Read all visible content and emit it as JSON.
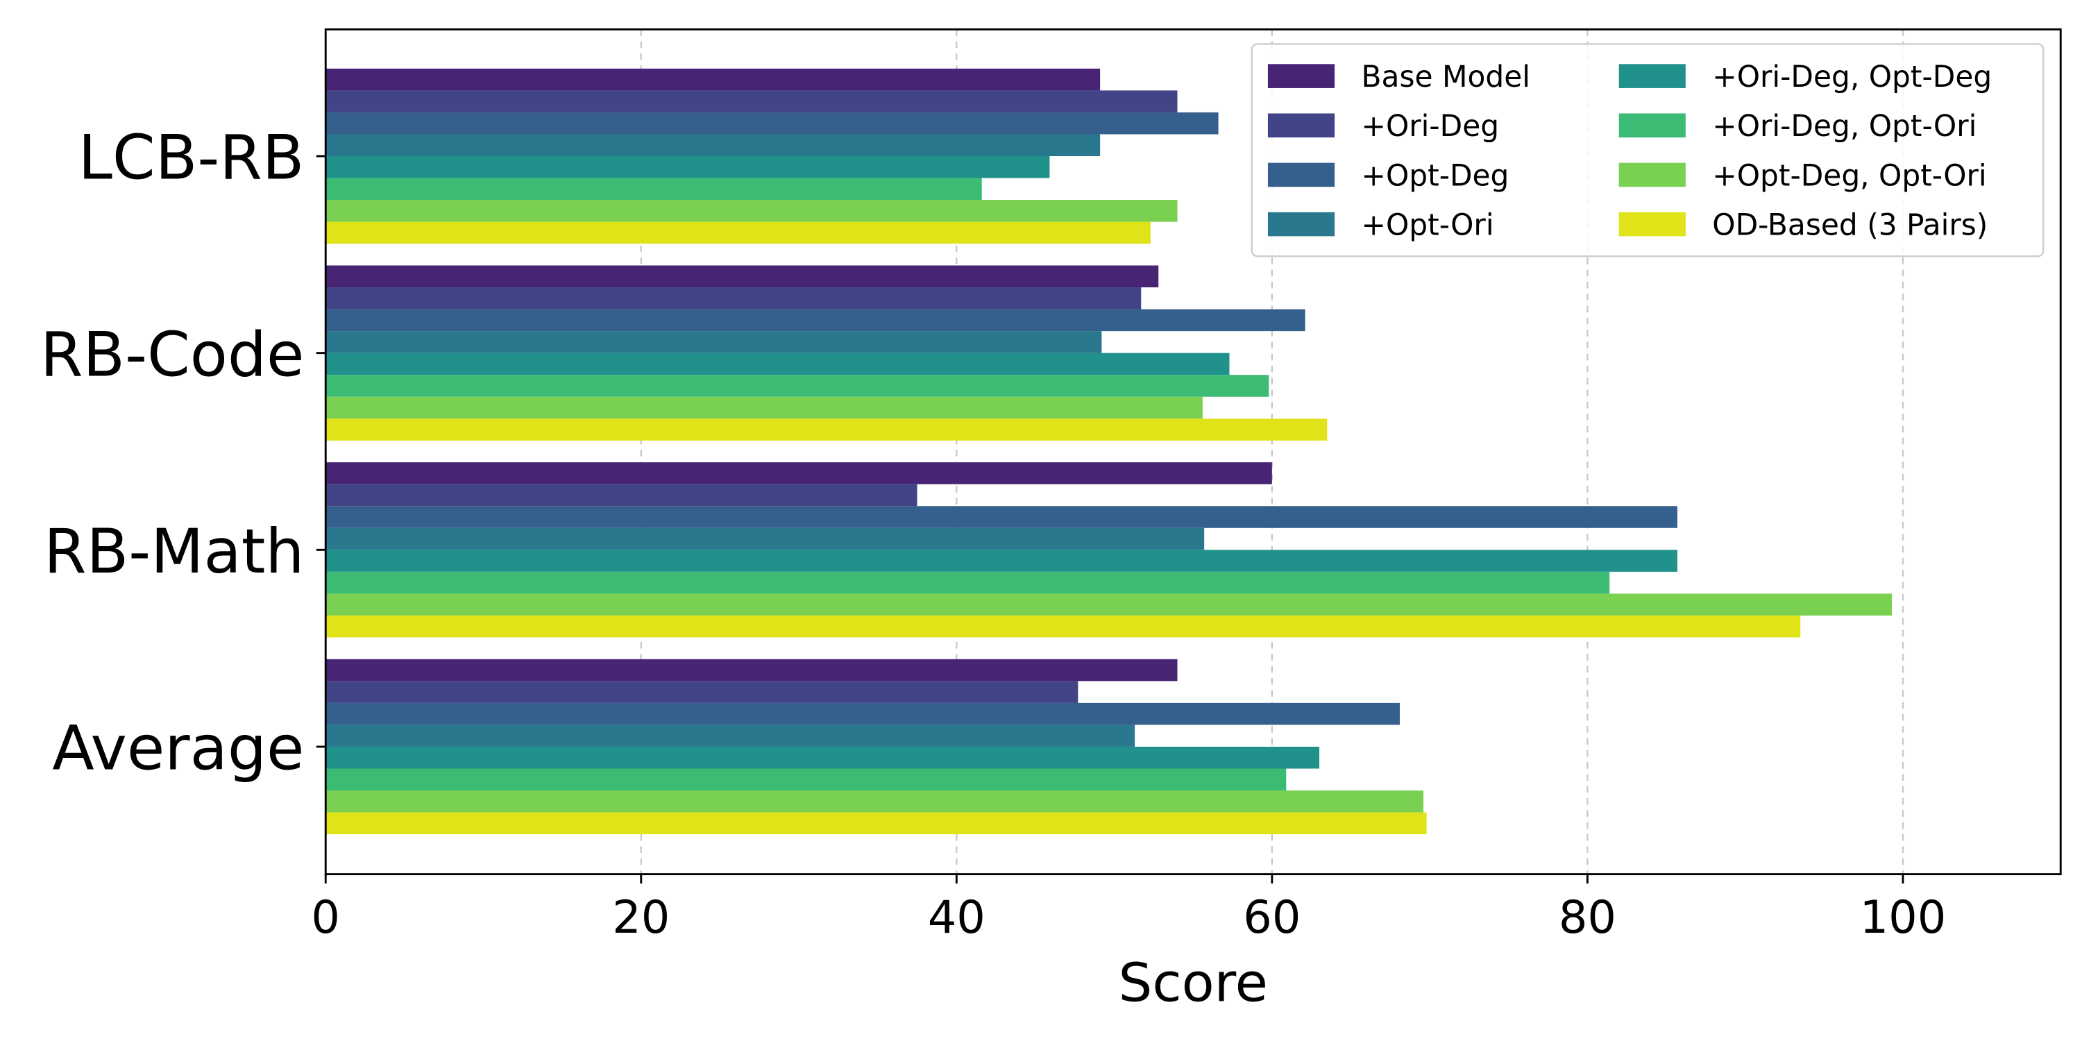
{
  "chart_data": {
    "type": "bar",
    "orientation": "horizontal",
    "title": "",
    "xlabel": "Score",
    "ylabel": "",
    "xlim": [
      0,
      110
    ],
    "xticks": [
      0,
      20,
      40,
      60,
      80,
      100
    ],
    "grid": "vertical dashed",
    "legend_position": "top-right",
    "categories": [
      "LCB-RB",
      "RB-Code",
      "RB-Math",
      "Average"
    ],
    "series": [
      {
        "name": "Base Model",
        "color": "#482475",
        "values": [
          49.1,
          52.8,
          60.0,
          54.0
        ]
      },
      {
        "name": "+Ori-Deg",
        "color": "#414487",
        "values": [
          54.0,
          51.7,
          37.5,
          47.7
        ]
      },
      {
        "name": "+Opt-Deg",
        "color": "#355f8d",
        "values": [
          56.6,
          62.1,
          85.7,
          68.1
        ]
      },
      {
        "name": "+Opt-Ori",
        "color": "#2a788e",
        "values": [
          49.1,
          49.2,
          55.7,
          51.3
        ]
      },
      {
        "name": "+Ori-Deg, Opt-Deg",
        "color": "#21918c",
        "values": [
          45.9,
          57.3,
          85.7,
          63.0
        ]
      },
      {
        "name": "+Ori-Deg, Opt-Ori",
        "color": "#3cbb75",
        "values": [
          41.6,
          59.8,
          81.4,
          60.9
        ]
      },
      {
        "name": "+Opt-Deg, Opt-Ori",
        "color": "#7ad151",
        "values": [
          54.0,
          55.6,
          99.3,
          69.6
        ]
      },
      {
        "name": "OD-Based (3 Pairs)",
        "color": "#dfe318",
        "values": [
          52.3,
          63.5,
          93.5,
          69.8
        ]
      }
    ]
  }
}
